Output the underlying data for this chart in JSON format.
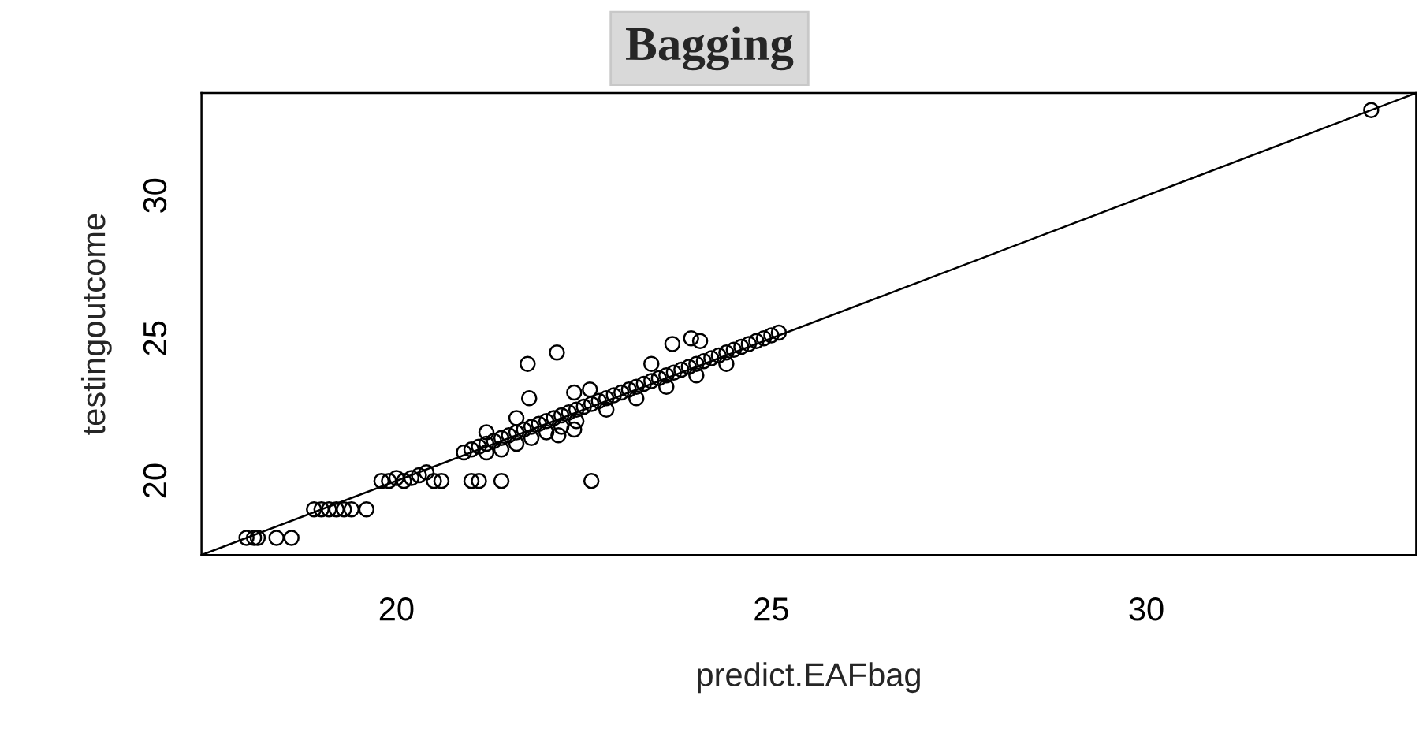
{
  "chart_data": {
    "type": "scatter",
    "title": "Bagging",
    "xlabel": "predict.EAFbag",
    "ylabel": "testingoutcome",
    "xlim": [
      17.4,
      33.6
    ],
    "ylim": [
      17.4,
      33.6
    ],
    "xticks": [
      20,
      25,
      30
    ],
    "yticks": [
      20,
      25,
      30
    ],
    "grid": false,
    "series": [
      {
        "marker": "circle",
        "color": "#000000",
        "x": [
          18.0,
          18.1,
          18.15,
          18.4,
          18.6,
          18.9,
          19.0,
          19.1,
          19.2,
          19.3,
          19.4,
          19.6,
          19.8,
          19.9,
          20.0,
          20.1,
          20.2,
          20.3,
          20.4,
          20.5,
          20.6,
          21.0,
          21.1,
          21.4,
          22.6,
          20.9,
          21.0,
          21.1,
          21.2,
          21.3,
          21.4,
          21.5,
          21.6,
          21.7,
          21.8,
          21.9,
          22.0,
          22.1,
          22.2,
          22.3,
          22.4,
          22.5,
          22.6,
          22.7,
          22.8,
          22.9,
          23.0,
          23.1,
          23.2,
          23.3,
          23.4,
          23.5,
          23.6,
          23.7,
          23.8,
          23.9,
          24.0,
          24.1,
          24.2,
          24.3,
          24.4,
          24.5,
          24.6,
          24.7,
          24.8,
          24.9,
          25.0,
          25.1,
          21.2,
          21.4,
          21.6,
          21.8,
          22.0,
          22.2,
          22.4,
          22.8,
          23.2,
          23.6,
          24.0,
          24.4,
          21.75,
          22.14,
          21.77,
          21.6,
          22.37,
          22.58,
          21.2,
          22.16,
          22.37,
          23.68,
          23.93,
          24.05,
          23.4,
          33.0
        ],
        "values": [
          18.0,
          18.0,
          18.0,
          18.0,
          18.0,
          19.0,
          19.0,
          19.0,
          19.0,
          19.0,
          19.0,
          19.0,
          20.0,
          20.0,
          20.1,
          20.0,
          20.1,
          20.2,
          20.3,
          20.0,
          20.0,
          20.0,
          20.0,
          20.0,
          20.0,
          21.0,
          21.1,
          21.2,
          21.3,
          21.4,
          21.5,
          21.6,
          21.7,
          21.8,
          21.9,
          22.0,
          22.1,
          22.2,
          22.3,
          22.4,
          22.5,
          22.6,
          22.7,
          22.8,
          22.9,
          23.0,
          23.1,
          23.2,
          23.3,
          23.4,
          23.5,
          23.6,
          23.7,
          23.8,
          23.9,
          24.0,
          24.1,
          24.2,
          24.3,
          24.4,
          24.5,
          24.6,
          24.7,
          24.8,
          24.9,
          25.0,
          25.1,
          25.2,
          21.0,
          21.1,
          21.3,
          21.5,
          21.7,
          21.9,
          22.1,
          22.5,
          22.9,
          23.3,
          23.7,
          24.1,
          24.1,
          24.5,
          22.9,
          22.2,
          23.1,
          23.2,
          21.7,
          21.6,
          21.8,
          24.8,
          25.0,
          24.9,
          24.1,
          33.0
        ]
      },
      {
        "type": "line",
        "marker": "none",
        "color": "#000000",
        "x": [
          17.4,
          33.6
        ],
        "values": [
          17.4,
          33.6
        ]
      }
    ]
  }
}
